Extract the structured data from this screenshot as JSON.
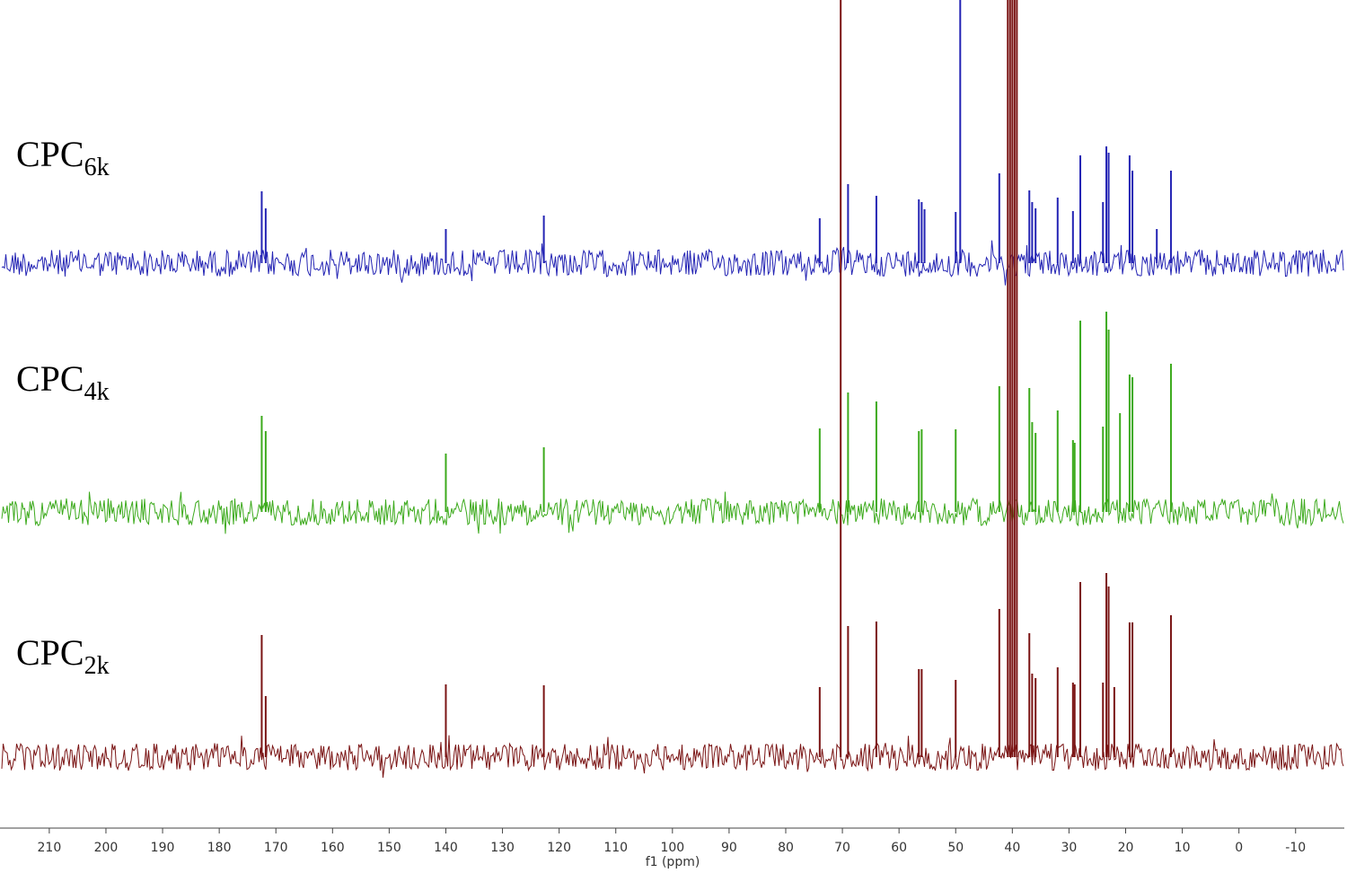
{
  "chart_data": {
    "type": "nmr",
    "x_label": "f1 (ppm)",
    "xlim": [
      218.7,
      -18.6
    ],
    "xticks": [
      210,
      200,
      190,
      180,
      170,
      160,
      150,
      140,
      130,
      120,
      110,
      100,
      90,
      80,
      70,
      60,
      50,
      40,
      30,
      20,
      10,
      0,
      -10
    ],
    "series": [
      {
        "name_main": "CPC",
        "name_sub": "6k",
        "color": "#2424b4",
        "x": [
          172.5,
          171.8,
          140,
          122.7,
          74,
          69,
          64,
          56.5,
          56,
          55.5,
          50,
          49.2,
          42.3,
          37,
          36.5,
          35.9,
          32,
          29.3,
          28,
          24,
          23.4,
          23,
          19.3,
          18.8,
          14.5,
          12
        ],
        "values": [
          80,
          61,
          38,
          53,
          50,
          88,
          75,
          71,
          68,
          60,
          57,
          293,
          100,
          81,
          68,
          61,
          73,
          58,
          120,
          68,
          130,
          123,
          120,
          103,
          38,
          103
        ]
      },
      {
        "name_main": "CPC",
        "name_sub": "4k",
        "color": "#3caa1c",
        "x": [
          172.5,
          171.8,
          140,
          122.7,
          74,
          69,
          64,
          56.5,
          56,
          50,
          42.3,
          37,
          36.5,
          35.9,
          32,
          29.3,
          29,
          28,
          24,
          23.4,
          23,
          21,
          19.3,
          18.8,
          12
        ],
        "values": [
          107,
          90,
          65,
          72,
          93,
          133,
          123,
          90,
          92,
          92,
          140,
          138,
          100,
          88,
          113,
          80,
          77,
          213,
          95,
          223,
          203,
          110,
          153,
          150,
          165
        ]
      },
      {
        "name_main": "CPC",
        "name_sub": "2k",
        "color": "#7a1414",
        "x": [
          172.5,
          171.8,
          140,
          122.7,
          74,
          70.3,
          69,
          64,
          56.5,
          56,
          50,
          42.3,
          40.8,
          40.4,
          40,
          39.6,
          39.2,
          37,
          36.5,
          35.9,
          32,
          29.3,
          29,
          28,
          24,
          23.4,
          23,
          22,
          19.3,
          18.8,
          12
        ],
        "values": [
          136,
          68,
          81,
          80,
          78,
          843,
          146,
          151,
          98,
          98,
          86,
          165,
          843,
          843,
          843,
          843,
          843,
          138,
          93,
          88,
          100,
          83,
          81,
          195,
          83,
          205,
          190,
          78,
          150,
          150,
          158
        ]
      }
    ]
  }
}
